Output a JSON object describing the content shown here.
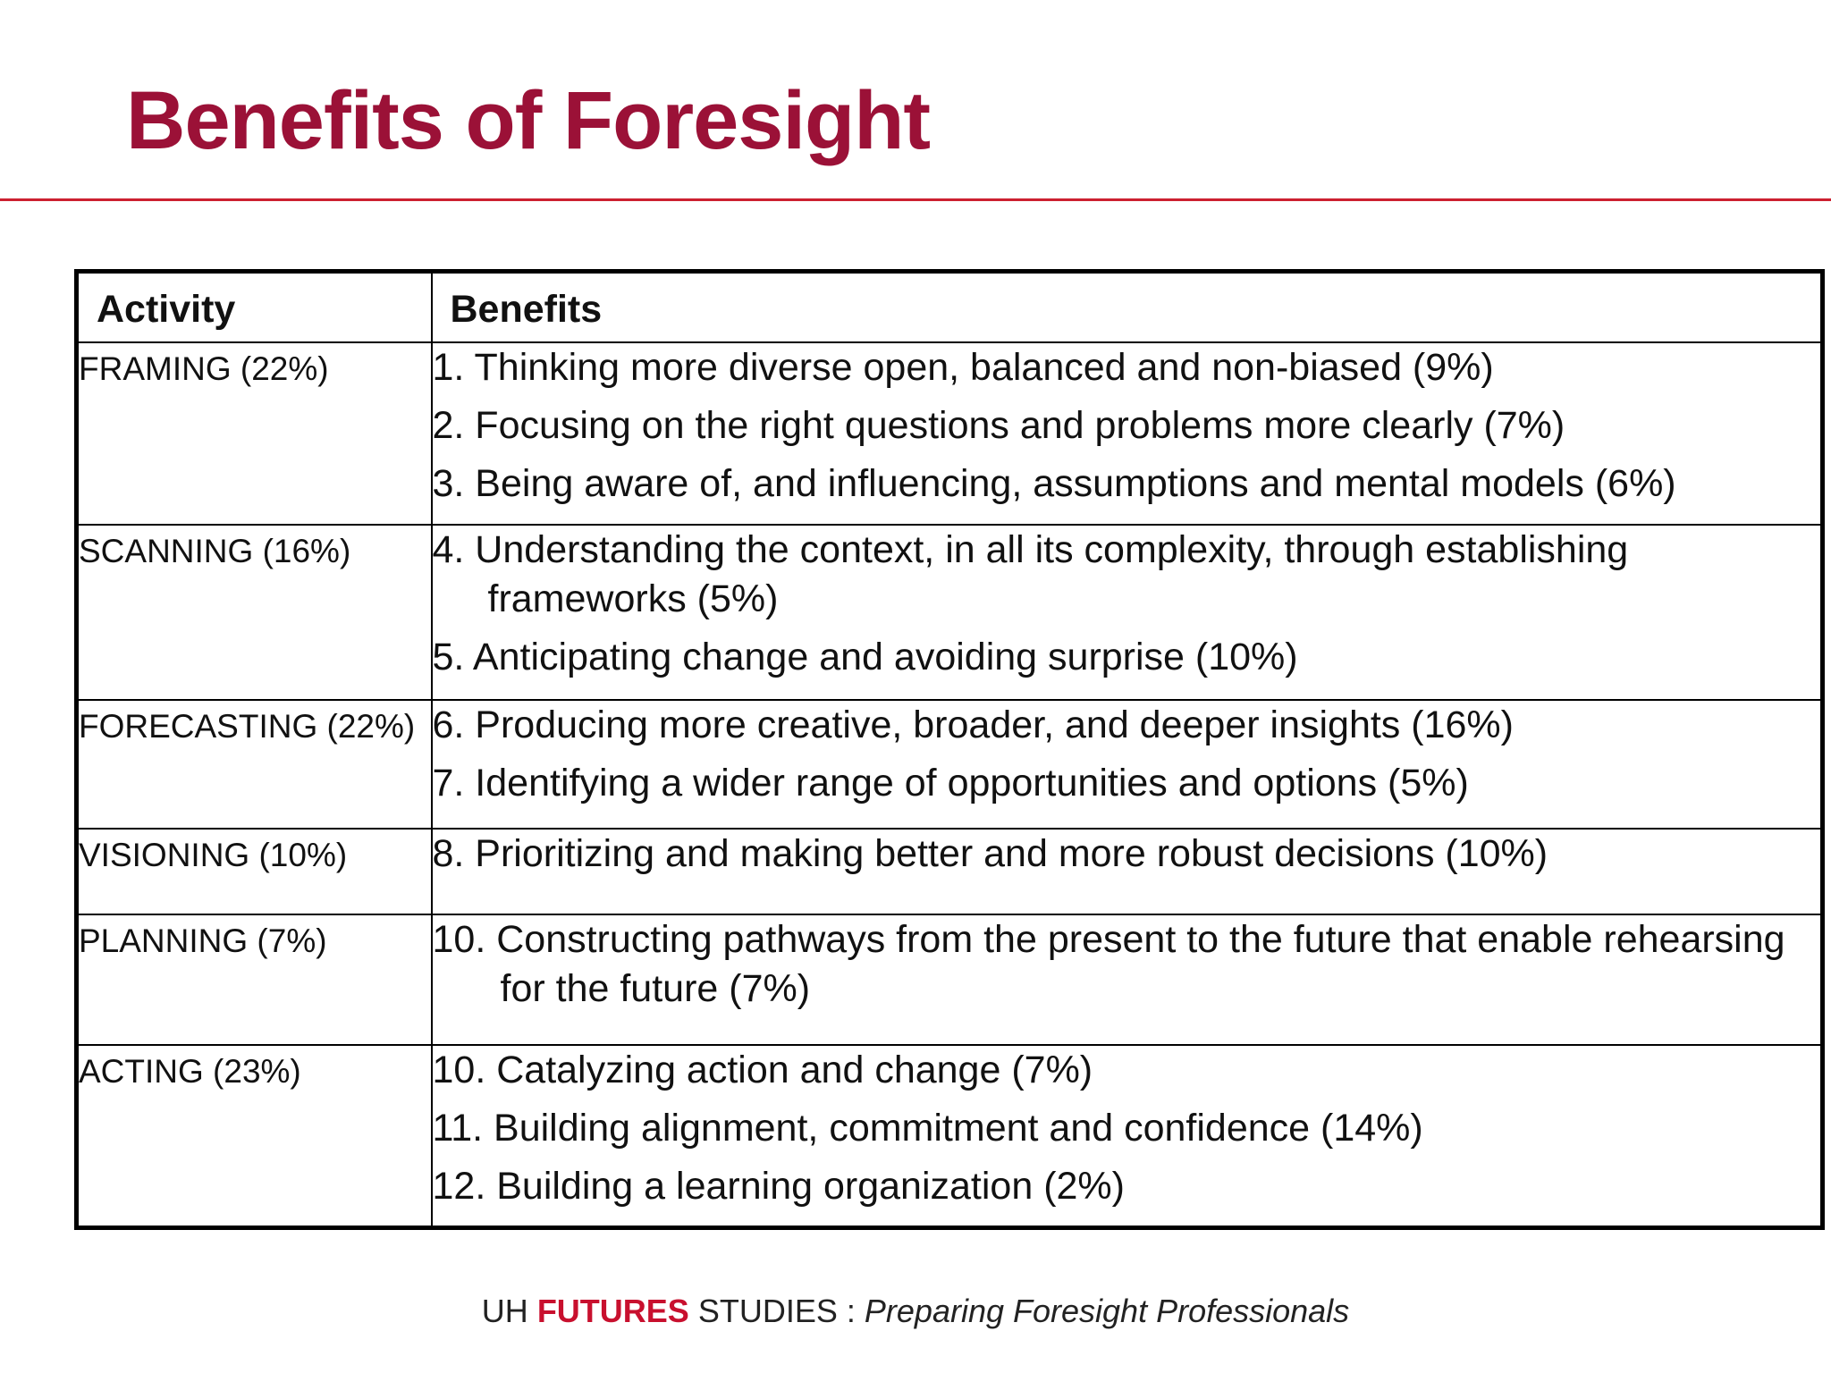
{
  "slide": {
    "title": "Benefits of Foresight"
  },
  "table": {
    "headers": {
      "activity": "Activity",
      "benefits": "Benefits"
    },
    "rows": [
      {
        "activity": "FRAMING (22%)",
        "benefits": [
          "1. Thinking more diverse open, balanced and non-biased (9%)",
          "2. Focusing on the right questions and problems more clearly (7%)",
          "3. Being aware of, and influencing, assumptions and mental models (6%)"
        ]
      },
      {
        "activity": "SCANNING (16%)",
        "benefits": [
          "4. Understanding the context, in all its complexity, through establishing frameworks (5%)",
          "5. Anticipating change and avoiding surprise (10%)"
        ]
      },
      {
        "activity": "FORECASTING (22%)",
        "benefits": [
          "6. Producing more creative, broader, and deeper insights (16%)",
          "7. Identifying a wider range of opportunities and options (5%)"
        ]
      },
      {
        "activity": "VISIONING (10%)",
        "benefits": [
          "8. Prioritizing and making better and more robust decisions (10%)"
        ]
      },
      {
        "activity": "PLANNING (7%)",
        "benefits": [
          "10. Constructing pathways from the present to the future that enable rehearsing for the future (7%)"
        ]
      },
      {
        "activity": "ACTING (23%)",
        "benefits": [
          "10. Catalyzing action and change (7%)",
          "11. Building alignment, commitment and confidence (14%)",
          "12. Building a learning organization (2%)"
        ]
      }
    ]
  },
  "footer": {
    "uh": "UH",
    "futures": "FUTURES",
    "studies": "STUDIES",
    "separator": ":",
    "tagline": "Preparing Foresight Professionals"
  },
  "colors": {
    "title": "#9b1137",
    "rule": "#cc2030",
    "footer_accent": "#c8102e"
  }
}
